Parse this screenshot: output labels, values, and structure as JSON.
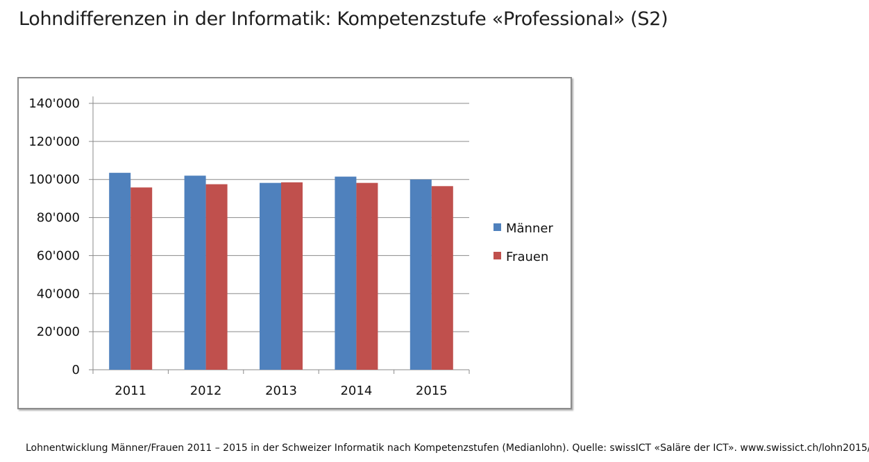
{
  "page": {
    "title": "Lohndifferenzen in der Informatik: Kompetenzstufe «Professional» (S2)",
    "caption": "Lohnentwicklung Männer/Frauen 2011 – 2015 in der Schweizer Informatik nach Kompetenzstufen (Medianlohn). Quelle: swissICT «Saläre der ICT». www.swissict.ch/lohn2015/"
  },
  "chart_data": {
    "type": "bar",
    "title": "",
    "xlabel": "",
    "ylabel": "",
    "categories": [
      "2011",
      "2012",
      "2013",
      "2014",
      "2015"
    ],
    "series": [
      {
        "name": "Männer",
        "color": "#4f81bd",
        "values": [
          103500,
          102000,
          98200,
          101500,
          100000
        ]
      },
      {
        "name": "Frauen",
        "color": "#c0504d",
        "values": [
          95800,
          97500,
          98500,
          98200,
          96500
        ]
      }
    ],
    "ylim": [
      0,
      140000
    ],
    "yticks": [
      0,
      20000,
      40000,
      60000,
      80000,
      100000,
      120000,
      140000
    ],
    "ytick_labels": [
      "0",
      "20'000",
      "40'000",
      "60'000",
      "80'000",
      "100'000",
      "120'000",
      "140'000"
    ],
    "grid": true,
    "legend_position": "right"
  }
}
